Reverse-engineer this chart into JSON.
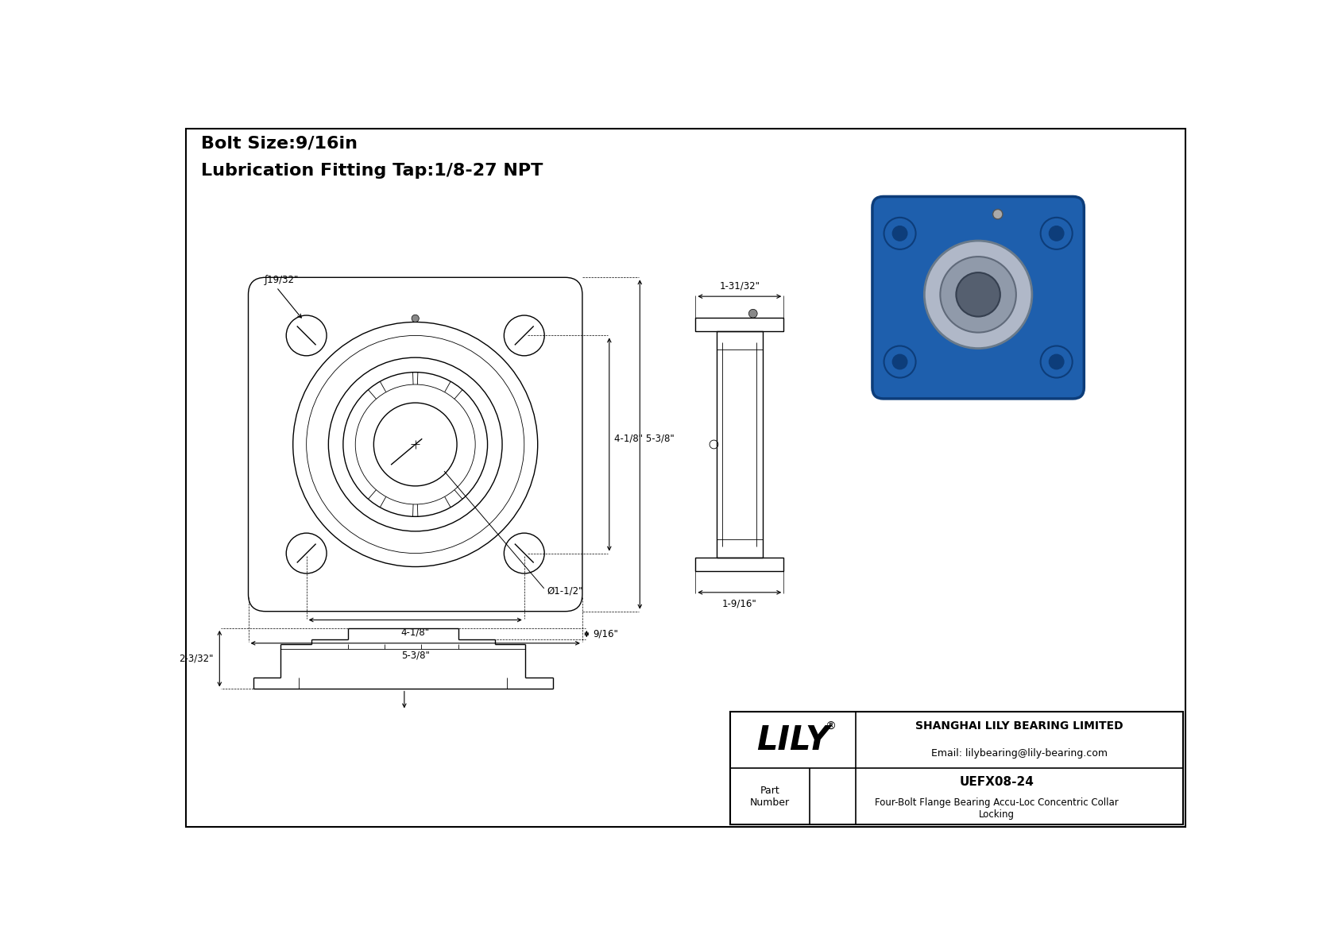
{
  "bg_color": "#ffffff",
  "line_color": "#000000",
  "title_lines": [
    "Bolt Size:9/16in",
    "Lubrication Fitting Tap:1/8-27 NPT"
  ],
  "title_fontsize": 16,
  "header_text_company": "SHANGHAI LILY BEARING LIMITED",
  "header_text_email": "Email: lilybearing@lily-bearing.com",
  "header_part_label": "Part\nNumber",
  "header_part_number": "UEFX08-24",
  "header_part_desc": "Four-Bolt Flange Bearing Accu-Loc Concentric Collar\nLocking",
  "header_logo": "LILY",
  "dims": {
    "bolt_circle": "ƒ19/32\"",
    "width_inner": "4-1/8\"",
    "width_outer": "5-3/8\"",
    "height_both": "4-1/8\" 5-3/8\"",
    "bore": "Ø1-1/2\"",
    "side_top": "1-31/32\"",
    "side_bot": "1-9/16\"",
    "front_depth": "9/16\"",
    "front_height": "2-3/32\""
  }
}
